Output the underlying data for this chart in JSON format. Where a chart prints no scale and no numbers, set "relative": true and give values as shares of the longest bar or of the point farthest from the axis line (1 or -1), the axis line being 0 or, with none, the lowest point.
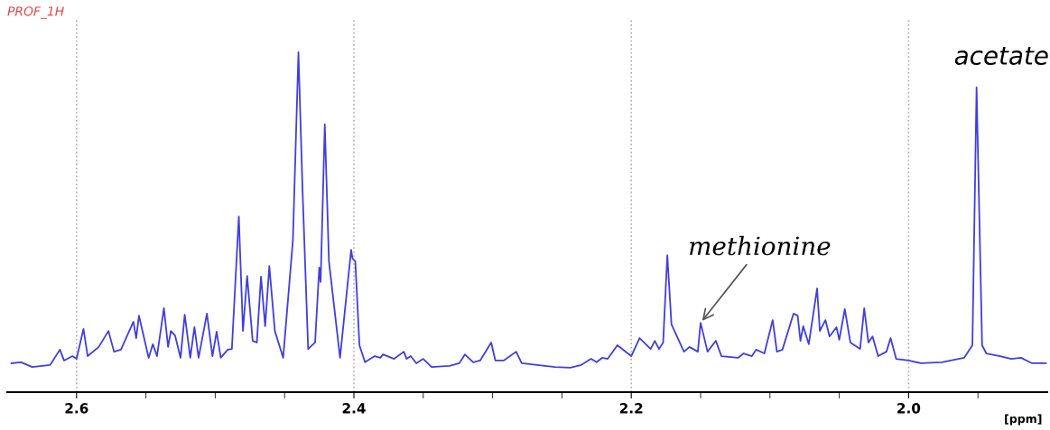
{
  "chart_data": {
    "type": "line",
    "title": "PROF_1H",
    "xlabel": "[ppm]",
    "relative": true,
    "grid": "x",
    "marker": "none",
    "line_style": "solid",
    "xlim": [
      2.65,
      1.9
    ],
    "xticks": [
      2.6,
      {
        "value": 2.55,
        "label": null
      },
      {
        "value": 2.5,
        "label": null
      },
      {
        "value": 2.45,
        "label": null
      },
      2.4,
      {
        "value": 2.35,
        "label": null
      },
      {
        "value": 2.3,
        "label": null
      },
      {
        "value": 2.25,
        "label": null
      },
      2.2,
      {
        "value": 2.15,
        "label": null
      },
      {
        "value": 2.1,
        "label": null
      },
      {
        "value": 2.05,
        "label": null
      },
      {
        "value": 2,
        "label": "2.0"
      },
      {
        "value": 1.95,
        "label": null
      }
    ],
    "annotations": [
      {
        "text": "methionine",
        "x": 2.15,
        "y": 0.204
      },
      {
        "text": "acetate",
        "x": 1.951,
        "y": 0.897
      }
    ],
    "series": [
      {
        "color": "#3f3fe0",
        "x": [
          2.647,
          2.64,
          2.632,
          2.619,
          2.612,
          2.609,
          2.603,
          2.6,
          2.595,
          2.592,
          2.584,
          2.577,
          2.573,
          2.568,
          2.559,
          2.557,
          2.555,
          2.548,
          2.545,
          2.542,
          2.537,
          2.534,
          2.532,
          2.529,
          2.525,
          2.522,
          2.518,
          2.515,
          2.512,
          2.506,
          2.502,
          2.499,
          2.496,
          2.491,
          2.488,
          2.483,
          2.48,
          2.477,
          2.473,
          2.47,
          2.467,
          2.464,
          2.461,
          2.457,
          2.451,
          2.444,
          2.44,
          2.437,
          2.433,
          2.428,
          2.425,
          2.424,
          2.421,
          2.418,
          2.41,
          2.402,
          2.401,
          2.399,
          2.396,
          2.392,
          2.385,
          2.381,
          2.379,
          2.371,
          2.364,
          2.362,
          2.359,
          2.355,
          2.35,
          2.344,
          2.331,
          2.324,
          2.32,
          2.314,
          2.309,
          2.301,
          2.298,
          2.292,
          2.283,
          2.279,
          2.268,
          2.255,
          2.244,
          2.236,
          2.229,
          2.225,
          2.221,
          2.217,
          2.21,
          2.2,
          2.194,
          2.186,
          2.183,
          2.18,
          2.177,
          2.174,
          2.171,
          2.162,
          2.158,
          2.152,
          2.15,
          2.145,
          2.139,
          2.135,
          2.123,
          2.119,
          2.113,
          2.11,
          2.104,
          2.098,
          2.095,
          2.091,
          2.083,
          2.08,
          2.078,
          2.076,
          2.072,
          2.066,
          2.064,
          2.06,
          2.057,
          2.052,
          2.05,
          2.046,
          2.042,
          2.035,
          2.032,
          2.029,
          2.026,
          2.022,
          2.016,
          2.013,
          2.009,
          2.0,
          1.991,
          1.976,
          1.96,
          1.954,
          1.951,
          1.947,
          1.944,
          1.934,
          1.926,
          1.919,
          1.911,
          1.901
        ],
        "values": [
          0.085,
          0.088,
          0.074,
          0.08,
          0.125,
          0.093,
          0.106,
          0.098,
          0.186,
          0.106,
          0.133,
          0.18,
          0.119,
          0.125,
          0.207,
          0.159,
          0.225,
          0.101,
          0.141,
          0.106,
          0.247,
          0.133,
          0.18,
          0.167,
          0.101,
          0.228,
          0.101,
          0.191,
          0.101,
          0.231,
          0.106,
          0.178,
          0.101,
          0.125,
          0.127,
          0.517,
          0.18,
          0.342,
          0.151,
          0.146,
          0.34,
          0.194,
          0.371,
          0.18,
          0.101,
          0.446,
          1.0,
          0.589,
          0.127,
          0.146,
          0.366,
          0.324,
          0.788,
          0.385,
          0.101,
          0.419,
          0.393,
          0.385,
          0.138,
          0.088,
          0.106,
          0.101,
          0.111,
          0.098,
          0.119,
          0.098,
          0.106,
          0.085,
          0.098,
          0.074,
          0.077,
          0.085,
          0.111,
          0.088,
          0.093,
          0.146,
          0.093,
          0.093,
          0.119,
          0.085,
          0.08,
          0.074,
          0.072,
          0.08,
          0.098,
          0.088,
          0.101,
          0.098,
          0.138,
          0.106,
          0.159,
          0.127,
          0.151,
          0.127,
          0.146,
          0.403,
          0.199,
          0.119,
          0.133,
          0.119,
          0.204,
          0.119,
          0.151,
          0.106,
          0.101,
          0.114,
          0.106,
          0.125,
          0.114,
          0.212,
          0.119,
          0.125,
          0.231,
          0.225,
          0.151,
          0.194,
          0.141,
          0.305,
          0.18,
          0.212,
          0.164,
          0.191,
          0.154,
          0.244,
          0.146,
          0.127,
          0.247,
          0.146,
          0.164,
          0.106,
          0.119,
          0.159,
          0.098,
          0.093,
          0.085,
          0.088,
          0.101,
          0.138,
          0.897,
          0.138,
          0.114,
          0.106,
          0.098,
          0.101,
          0.085,
          0.085
        ]
      }
    ]
  }
}
